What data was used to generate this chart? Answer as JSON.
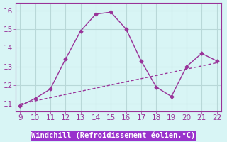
{
  "xlabel": "Windchill (Refroidissement éolien,°C)",
  "line1_x": [
    9,
    10,
    11,
    12,
    13,
    14,
    15,
    16,
    17,
    18,
    19,
    20,
    21,
    22
  ],
  "line1_y": [
    10.9,
    11.3,
    11.8,
    13.4,
    14.9,
    15.8,
    15.9,
    15.0,
    13.3,
    11.9,
    11.4,
    13.0,
    13.7,
    13.3
  ],
  "line2_x": [
    9,
    22
  ],
  "line2_y": [
    11.0,
    13.2
  ],
  "line_color": "#993399",
  "bg_color": "#d8f5f5",
  "grid_color": "#b8d8d8",
  "axis_color": "#993399",
  "xlabel_bg": "#9933cc",
  "xlim": [
    8.7,
    22.3
  ],
  "ylim": [
    10.6,
    16.4
  ],
  "xticks": [
    9,
    10,
    11,
    12,
    13,
    14,
    15,
    16,
    17,
    18,
    19,
    20,
    21,
    22
  ],
  "yticks": [
    11,
    12,
    13,
    14,
    15,
    16
  ],
  "tick_fontsize": 7.5,
  "xlabel_fontsize": 7.5
}
